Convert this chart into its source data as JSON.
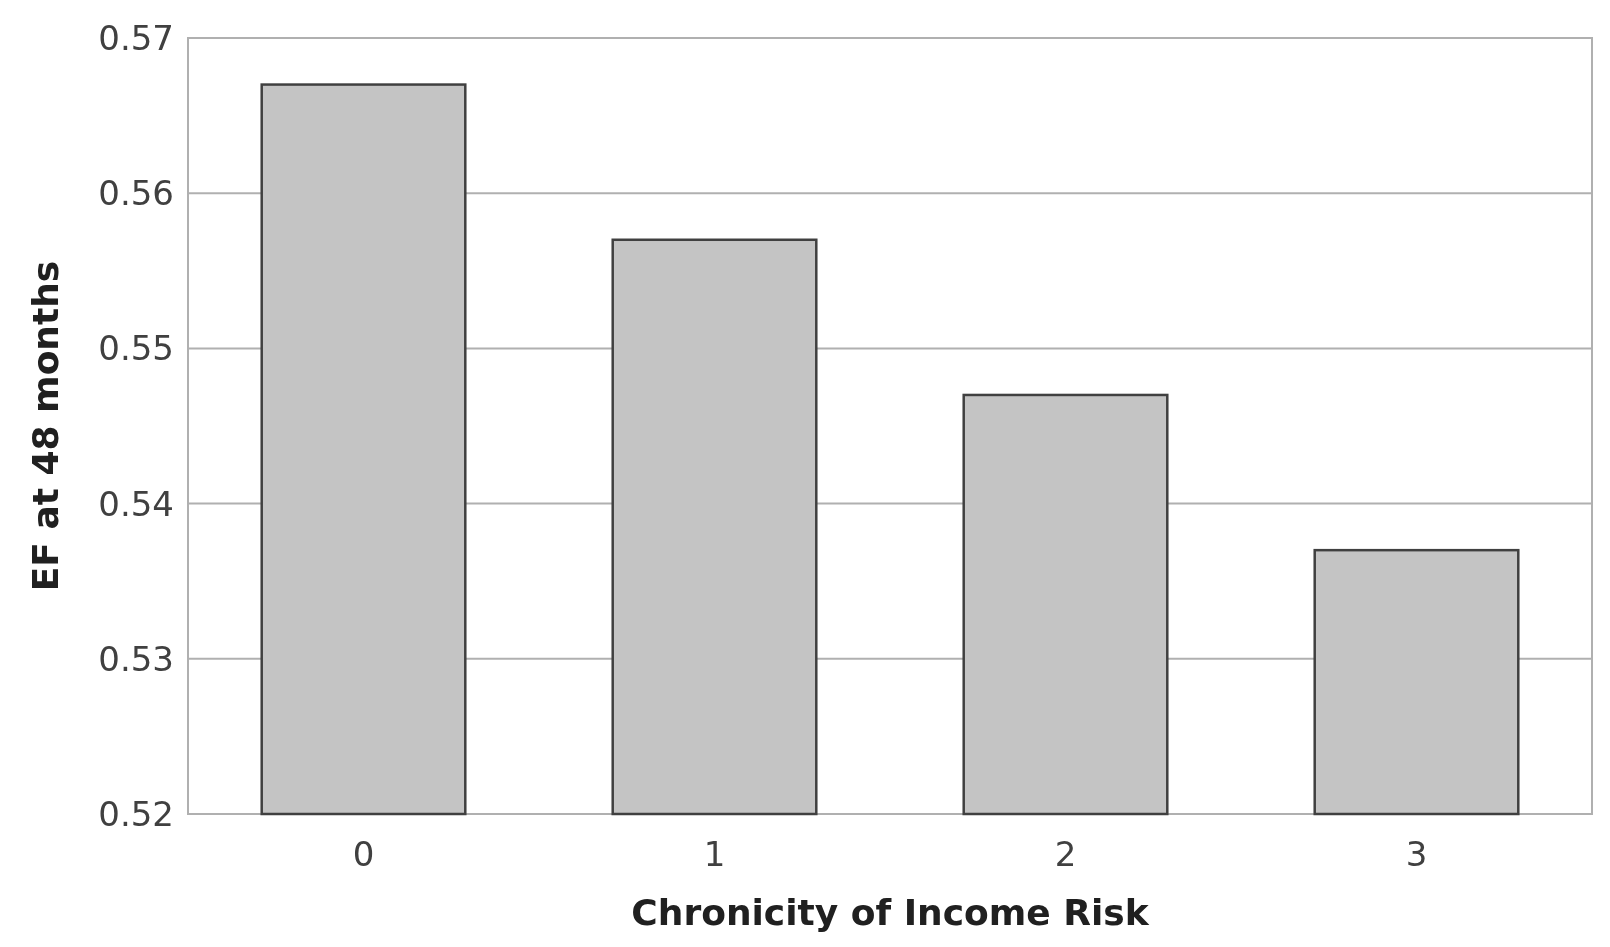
{
  "chart_data": {
    "type": "bar",
    "xlabel": "Chronicity of Income Risk",
    "ylabel": "EF at 48 months",
    "categories": [
      "0",
      "1",
      "2",
      "3"
    ],
    "values": [
      0.567,
      0.557,
      0.547,
      0.537
    ],
    "color": "#c4c4c4",
    "ylim": [
      0.52,
      0.57
    ],
    "yticks": [
      0.52,
      0.53,
      0.54,
      0.55,
      0.56,
      0.57
    ],
    "grid": "y"
  }
}
